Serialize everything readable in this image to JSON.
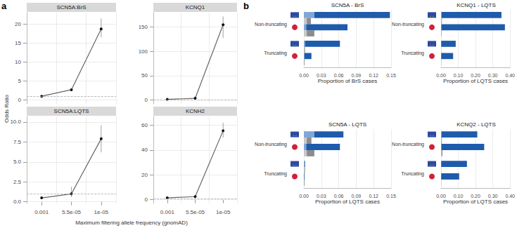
{
  "panels": [
    {
      "label": "a",
      "x_label": "Maximum filtering allele frequency (gnomAD)",
      "y_label": "Odds Ratio"
    },
    {
      "label": "b"
    }
  ],
  "chart_data": [
    {
      "type": "line",
      "title": "SCN5A:BrS",
      "categories": [
        "0.001",
        "5.5e-05",
        "1e-05"
      ],
      "values": [
        1.0,
        2.7,
        18.7
      ],
      "errors": [
        [
          0.9,
          1.1
        ],
        [
          2.4,
          3.0
        ],
        [
          16.5,
          21.5
        ]
      ],
      "reference_line": 1,
      "ylim": [
        -1,
        23
      ],
      "yticks": [
        0,
        5,
        10,
        15,
        20
      ],
      "tick_labels": "y",
      "grid": true,
      "color": "#666666",
      "marker": "circle"
    },
    {
      "type": "line",
      "title": "KCNQ1",
      "categories": [
        "0.001",
        "5.5e-05",
        "1e-05"
      ],
      "values": [
        1.2,
        3.5,
        155
      ],
      "errors": [
        [
          1.0,
          1.4
        ],
        [
          2.5,
          4.5
        ],
        [
          128,
          172
        ]
      ],
      "reference_line": 1,
      "ylim": [
        -8,
        180
      ],
      "yticks": [
        0,
        50,
        100,
        150
      ],
      "tick_labels": "y",
      "grid": true,
      "color": "#666666",
      "marker": "circle"
    },
    {
      "type": "line",
      "title": "SCN5A:LQTS",
      "categories": [
        "0.001",
        "5.5e-05",
        "1e-05"
      ],
      "values": [
        0.5,
        1.0,
        7.9
      ],
      "errors": [
        [
          0.4,
          0.65
        ],
        [
          0.6,
          1.9
        ],
        [
          6.2,
          9.6
        ]
      ],
      "reference_line": 1,
      "ylim": [
        -0.2,
        10.7
      ],
      "yticks": [
        {
          "value": 0,
          "label": "0.0"
        },
        2.5,
        {
          "value": 5,
          "label": "5.0"
        },
        7.5,
        {
          "value": 10,
          "label": "10.0"
        }
      ],
      "grid": true,
      "color": "#666666",
      "marker": "circle"
    },
    {
      "type": "line",
      "title": "KCNH2",
      "categories": [
        "0.001",
        "5.5e-05",
        "1e-05"
      ],
      "values": [
        1.5,
        2.5,
        55.5
      ],
      "errors": [
        [
          1.2,
          1.8
        ],
        [
          1.8,
          3.2
        ],
        [
          50,
          62
        ]
      ],
      "reference_line": 1,
      "ylim": [
        -3,
        67
      ],
      "yticks": [
        0,
        20,
        40,
        60
      ],
      "grid": true,
      "color": "#666666",
      "marker": "circle"
    },
    {
      "type": "bar",
      "orientation": "horizontal",
      "stacked": true,
      "title": "SCN5A - BrS",
      "x_label": "Proportion of BrS cases",
      "categories": [
        "Non-truncating",
        "Truncating"
      ],
      "series": [
        [
          {
            "color": "#7fa7d6",
            "values": [
              0.018,
              0.002
            ]
          },
          {
            "color": "#1f5bab",
            "values": [
              0.13,
              0.06
            ]
          }
        ],
        [
          {
            "color": "#c8c8c8",
            "values": [
              0.005,
              0.001
            ]
          },
          {
            "color": "#8c8c8c",
            "values": [
              0.007,
              0.001
            ]
          }
        ],
        [
          {
            "color": "#7fa7d6",
            "values": [
              0.004,
              0.001
            ]
          },
          {
            "color": "#1f5bab",
            "values": [
              0.071,
              0.012
            ]
          }
        ],
        [
          {
            "color": "#c8c8c8",
            "values": [
              0.005,
              0
            ]
          },
          {
            "color": "#8c8c8c",
            "values": [
              0.013,
              0.001
            ]
          }
        ]
      ],
      "xlim": [
        0,
        0.15
      ],
      "xticks": [
        {
          "value": 0,
          "label": "0.00"
        },
        {
          "value": 0.03,
          "label": "0.03"
        },
        {
          "value": 0.06,
          "label": "0.06"
        },
        {
          "value": 0.09,
          "label": "0.09"
        },
        {
          "value": 0.12,
          "label": "0.12"
        },
        {
          "value": 0.15,
          "label": "0.15"
        }
      ],
      "grid": true
    },
    {
      "type": "bar",
      "orientation": "horizontal",
      "stacked": true,
      "title": "KCNQ1 - LQTS",
      "x_label": "Proportion of LQTS cases",
      "categories": [
        "Non-truncating",
        "Truncating"
      ],
      "series": [
        [
          {
            "color": "#7fa7d6",
            "values": [
              0.004,
              0.001
            ]
          },
          {
            "color": "#1f5bab",
            "values": [
              0.346,
              0.084
            ]
          }
        ],
        [
          {
            "color": "#c8c8c8",
            "values": [
              0.002,
              0.0005
            ]
          },
          {
            "color": "#8c8c8c",
            "values": [
              0.003,
              0.0005
            ]
          }
        ],
        [
          {
            "color": "#7fa7d6",
            "values": [
              0.002,
              0.001
            ]
          },
          {
            "color": "#1f5bab",
            "values": [
              0.368,
              0.069
            ]
          }
        ],
        [
          {
            "color": "#c8c8c8",
            "values": [
              0.001,
              0
            ]
          },
          {
            "color": "#8c8c8c",
            "values": [
              0.002,
              0.001
            ]
          }
        ]
      ],
      "xlim": [
        0,
        0.4
      ],
      "xticks": [
        {
          "value": 0,
          "label": "0.00"
        },
        {
          "value": 0.1,
          "label": "0.10"
        },
        {
          "value": 0.2,
          "label": "0.20"
        },
        {
          "value": 0.3,
          "label": "0.30"
        },
        {
          "value": 0.4,
          "label": "0.40"
        }
      ],
      "grid": true
    },
    {
      "type": "bar",
      "orientation": "horizontal",
      "stacked": true,
      "title": "SCN5A - LQTS",
      "x_label": "Proportion of LQTS cases",
      "categories": [
        "Non-truncating",
        "Truncating"
      ],
      "series": [
        [
          {
            "color": "#7fa7d6",
            "values": [
              0.018,
              0.001
            ]
          },
          {
            "color": "#1f5bab",
            "values": [
              0.05,
              0.001
            ]
          }
        ],
        [
          {
            "color": "#c8c8c8",
            "values": [
              0.005,
              0.001
            ]
          },
          {
            "color": "#8c8c8c",
            "values": [
              0.008,
              0.001
            ]
          }
        ],
        [
          {
            "color": "#7fa7d6",
            "values": [
              0.004,
              0
            ]
          },
          {
            "color": "#1f5bab",
            "values": [
              0.058,
              0.001
            ]
          }
        ],
        [
          {
            "color": "#c8c8c8",
            "values": [
              0.005,
              0
            ]
          },
          {
            "color": "#8c8c8c",
            "values": [
              0.013,
              0.001
            ]
          }
        ]
      ],
      "xlim": [
        0,
        0.15
      ],
      "xticks": [
        {
          "value": 0,
          "label": "0.00"
        },
        {
          "value": 0.03,
          "label": "0.03"
        },
        {
          "value": 0.06,
          "label": "0.06"
        },
        {
          "value": 0.09,
          "label": "0.09"
        },
        {
          "value": 0.12,
          "label": "0.12"
        },
        {
          "value": 0.15,
          "label": "0.15"
        }
      ],
      "grid": true
    },
    {
      "type": "bar",
      "orientation": "horizontal",
      "stacked": true,
      "title": "KCNQ2 - LQTS",
      "x_label": "Proportion of LQTS cases",
      "categories": [
        "Non-truncating",
        "Truncating"
      ],
      "series": [
        [
          {
            "color": "#7fa7d6",
            "values": [
              0.003,
              0.001
            ]
          },
          {
            "color": "#1f5bab",
            "values": [
              0.207,
              0.149
            ]
          }
        ],
        [
          {
            "color": "#c8c8c8",
            "values": [
              0.002,
              0.0005
            ]
          },
          {
            "color": "#8c8c8c",
            "values": [
              0.003,
              0.0005
            ]
          }
        ],
        [
          {
            "color": "#7fa7d6",
            "values": [
              0.002,
              0.001
            ]
          },
          {
            "color": "#1f5bab",
            "values": [
              0.248,
              0.104
            ]
          }
        ],
        [
          {
            "color": "#c8c8c8",
            "values": [
              0.003,
              0
            ]
          },
          {
            "color": "#8c8c8c",
            "values": [
              0.005,
              0.001
            ]
          }
        ]
      ],
      "xlim": [
        0,
        0.4
      ],
      "xticks": [
        {
          "value": 0,
          "label": "0.00"
        },
        {
          "value": 0.1,
          "label": "0.10"
        },
        {
          "value": 0.2,
          "label": "0.20"
        },
        {
          "value": 0.3,
          "label": "0.30"
        },
        {
          "value": 0.4,
          "label": "0.40"
        }
      ],
      "grid": true
    }
  ]
}
